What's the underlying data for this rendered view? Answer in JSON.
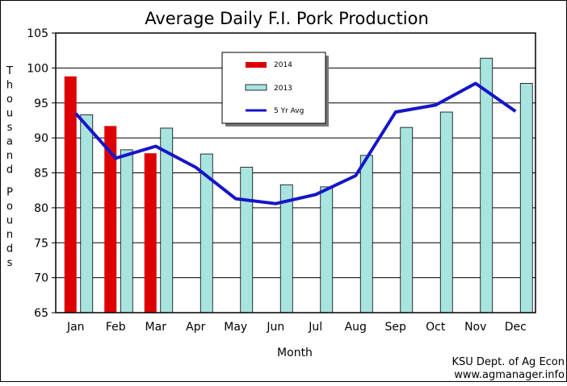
{
  "chart_data": {
    "type": "bar",
    "title": "Average Daily F.I. Pork Production",
    "xlabel": "Month",
    "ylabel": "Thousand Pounds",
    "ylim": [
      65,
      105
    ],
    "yticks": [
      65,
      70,
      75,
      80,
      85,
      90,
      95,
      100,
      105
    ],
    "grid": "horizontal",
    "legend_position": "top-center",
    "categories": [
      "Jan",
      "Feb",
      "Mar",
      "Apr",
      "May",
      "Jun",
      "Jul",
      "Aug",
      "Sep",
      "Oct",
      "Nov",
      "Dec"
    ],
    "series": [
      {
        "name": "2014",
        "kind": "bar",
        "color": "#dd0000",
        "values": [
          98.8,
          91.7,
          87.8,
          null,
          null,
          null,
          null,
          null,
          null,
          null,
          null,
          null
        ]
      },
      {
        "name": "2013",
        "kind": "bar",
        "color": "#a8e4e0",
        "values": [
          93.3,
          88.3,
          91.4,
          87.7,
          85.8,
          83.3,
          83.0,
          87.5,
          91.5,
          93.7,
          101.4,
          97.8
        ]
      },
      {
        "name": "5 Yr Avg",
        "kind": "line",
        "color": "#1515c8",
        "values": [
          93.5,
          87.1,
          88.8,
          85.8,
          81.3,
          80.6,
          81.9,
          84.6,
          93.7,
          94.7,
          97.8,
          93.8
        ]
      }
    ],
    "source": [
      "KSU Dept. of Ag Econ",
      "www.agmanager.info"
    ]
  }
}
